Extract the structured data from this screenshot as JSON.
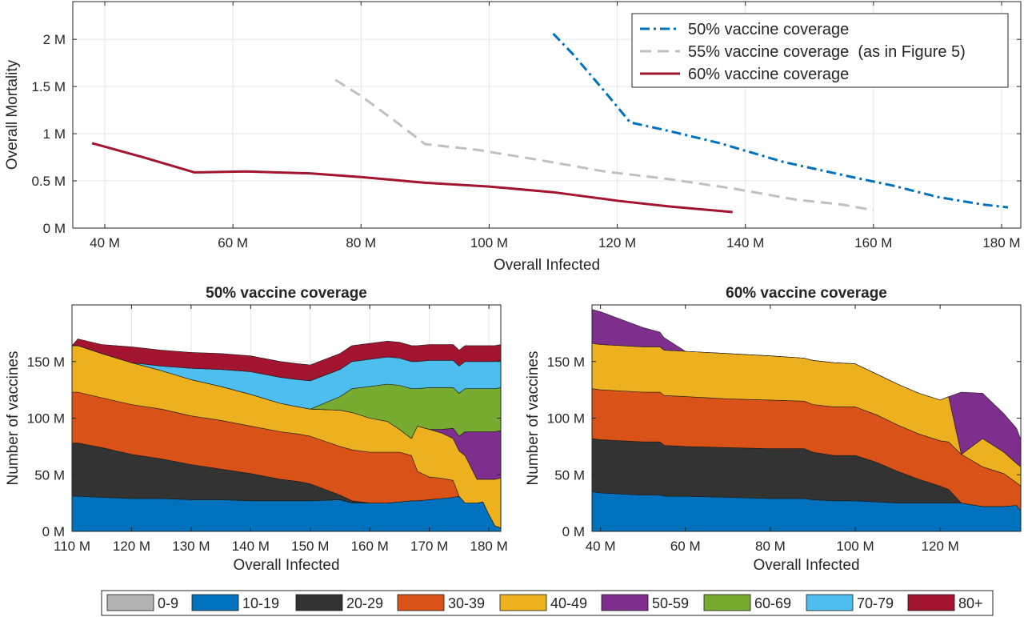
{
  "colors": {
    "axis": "#262626",
    "grid": "#e6e6e6",
    "age": [
      "#b3b3b3",
      "#0072bd",
      "#333333",
      "#d95319",
      "#edb120",
      "#7e2f8e",
      "#77ac30",
      "#4dbeee",
      "#a2142f"
    ]
  },
  "legend_bottom": {
    "labels": [
      "0-9",
      "10-19",
      "20-29",
      "30-39",
      "40-49",
      "50-59",
      "60-69",
      "70-79",
      "80+"
    ]
  },
  "chart_data": [
    {
      "type": "line",
      "title": "",
      "xlabel": "Overall Infected",
      "ylabel": "Overall Mortality",
      "xlim": [
        35,
        183
      ],
      "ylim": [
        0,
        2.4
      ],
      "xticks": [
        40,
        60,
        80,
        100,
        120,
        140,
        160,
        180
      ],
      "xtick_labels": [
        "40 M",
        "60 M",
        "80 M",
        "100 M",
        "120 M",
        "140 M",
        "160 M",
        "180 M"
      ],
      "yticks": [
        0,
        0.5,
        1,
        1.5,
        2
      ],
      "ytick_labels": [
        "0 M",
        "0.5 M",
        "1 M",
        "1.5 M",
        "2 M"
      ],
      "grid": true,
      "legend_position": "top-right",
      "series": [
        {
          "name": "50% vaccine coverage",
          "style": "dashdot",
          "color": "#0072bd",
          "x": [
            110,
            113,
            118,
            122,
            128,
            136,
            146,
            156,
            163,
            170,
            177,
            181
          ],
          "y": [
            2.06,
            1.85,
            1.45,
            1.12,
            1.03,
            0.9,
            0.7,
            0.55,
            0.45,
            0.33,
            0.25,
            0.22
          ]
        },
        {
          "name": "55% vaccine coverage  (as in Figure 5)",
          "style": "dashed",
          "color": "#c0c0c0",
          "x": [
            76,
            80,
            85,
            90,
            98,
            108,
            118,
            128,
            138,
            148,
            155,
            160
          ],
          "y": [
            1.57,
            1.4,
            1.15,
            0.89,
            0.83,
            0.72,
            0.6,
            0.52,
            0.42,
            0.3,
            0.25,
            0.19
          ]
        },
        {
          "name": "60% vaccine coverage",
          "style": "solid",
          "color": "#a2142f",
          "x": [
            38,
            46,
            54,
            62,
            72,
            80,
            90,
            100,
            110,
            120,
            128,
            138
          ],
          "y": [
            0.9,
            0.75,
            0.59,
            0.6,
            0.58,
            0.54,
            0.48,
            0.44,
            0.38,
            0.29,
            0.23,
            0.17
          ]
        }
      ]
    },
    {
      "type": "area",
      "title": "50% vaccine coverage",
      "xlabel": "Overall Infected",
      "ylabel": "Number of vaccines",
      "xlim": [
        110,
        182
      ],
      "ylim": [
        0,
        200
      ],
      "xticks": [
        110,
        120,
        130,
        140,
        150,
        160,
        170,
        180
      ],
      "xtick_labels": [
        "110 M",
        "120 M",
        "130 M",
        "140 M",
        "150 M",
        "160 M",
        "170 M",
        "180 M"
      ],
      "yticks": [
        0,
        50,
        100,
        150
      ],
      "ytick_labels": [
        "0 M",
        "50 M",
        "100 M",
        "150 M"
      ],
      "grid": true,
      "x": [
        110,
        111,
        115,
        120,
        125,
        130,
        135,
        140,
        145,
        148,
        150,
        155,
        157,
        160,
        163,
        165,
        167,
        168,
        170,
        172,
        174,
        175,
        176,
        178,
        179,
        180,
        181,
        182
      ],
      "series": [
        {
          "name": "0-9",
          "values": [
            0,
            0,
            0,
            0,
            0,
            0,
            0,
            0,
            0,
            0,
            0,
            0,
            0,
            0,
            0,
            0,
            0,
            0,
            0,
            0,
            0,
            0,
            0,
            0,
            0,
            0,
            0,
            0
          ]
        },
        {
          "name": "10-19",
          "values": [
            31,
            31,
            30,
            29,
            29,
            28,
            28,
            27,
            27,
            27,
            27,
            28,
            25,
            25,
            25,
            26,
            27,
            27,
            28,
            29,
            30,
            31,
            25,
            25,
            26,
            15,
            5,
            3
          ]
        },
        {
          "name": "20-29",
          "values": [
            47,
            47,
            44,
            39,
            35,
            31,
            27,
            24,
            19,
            17,
            15,
            4,
            2,
            0,
            0,
            0,
            0,
            0,
            0,
            0,
            0,
            0,
            0,
            0,
            0,
            0,
            0,
            0
          ]
        },
        {
          "name": "30-39",
          "values": [
            45,
            45,
            44,
            44,
            44,
            43,
            43,
            42,
            42,
            42,
            42,
            43,
            45,
            45,
            45,
            44,
            40,
            26,
            20,
            18,
            15,
            0,
            0,
            0,
            0,
            0,
            0,
            0
          ]
        },
        {
          "name": "40-49",
          "values": [
            41,
            41,
            39,
            37,
            34,
            32,
            30,
            28,
            25,
            24,
            24,
            32,
            33,
            30,
            27,
            20,
            15,
            40,
            42,
            40,
            37,
            40,
            42,
            21,
            20,
            31,
            41,
            44
          ]
        },
        {
          "name": "50-59",
          "values": [
            0,
            0,
            0,
            0,
            0,
            0,
            0,
            0,
            0,
            0,
            0,
            0,
            0,
            0,
            0,
            0,
            0,
            0,
            0,
            3,
            9,
            13,
            21,
            42,
            42,
            42,
            42,
            42
          ]
        },
        {
          "name": "60-69",
          "values": [
            0,
            0,
            0,
            0,
            0,
            0,
            0,
            0,
            0,
            0,
            0,
            12,
            21,
            28,
            33,
            39,
            44,
            33,
            37,
            37,
            36,
            38,
            38,
            38,
            38,
            38,
            38,
            38
          ]
        },
        {
          "name": "70-79",
          "values": [
            0,
            0,
            0,
            0,
            4,
            10,
            15,
            20,
            23,
            24,
            25,
            24,
            24,
            24,
            24,
            24,
            24,
            24,
            24,
            24,
            24,
            24,
            24,
            24,
            24,
            24,
            24,
            24
          ]
        },
        {
          "name": "80+",
          "values": [
            0,
            6,
            8,
            14,
            14,
            14,
            14,
            14,
            14,
            14,
            14,
            14,
            14,
            14,
            14,
            14,
            14,
            14,
            14,
            14,
            14,
            14,
            14,
            14,
            14,
            14,
            14,
            14
          ]
        }
      ]
    },
    {
      "type": "area",
      "title": "60% vaccine coverage",
      "xlabel": "Overall Infected",
      "ylabel": "Number of vaccines",
      "xlim": [
        38,
        139
      ],
      "ylim": [
        0,
        200
      ],
      "xticks": [
        40,
        60,
        80,
        100,
        120
      ],
      "xtick_labels": [
        "40 M",
        "60 M",
        "80 M",
        "100 M",
        "120 M"
      ],
      "yticks": [
        0,
        50,
        100,
        150
      ],
      "ytick_labels": [
        "0 M",
        "50 M",
        "100 M",
        "150 M"
      ],
      "grid": false,
      "x": [
        38,
        40,
        45,
        50,
        54,
        55,
        60,
        70,
        80,
        88,
        90,
        95,
        100,
        105,
        110,
        115,
        120,
        122,
        125,
        130,
        135,
        138,
        139
      ],
      "series": [
        {
          "name": "0-9",
          "values": [
            0,
            0,
            0,
            0,
            0,
            0,
            0,
            0,
            0,
            0,
            0,
            0,
            0,
            0,
            0,
            0,
            0,
            0,
            0,
            0,
            0,
            0,
            0
          ]
        },
        {
          "name": "10-19",
          "values": [
            35,
            34,
            33,
            32,
            32,
            31,
            31,
            30,
            29,
            29,
            28,
            27,
            27,
            26,
            25,
            25,
            25,
            25,
            25,
            22,
            22,
            23,
            18
          ]
        },
        {
          "name": "20-29",
          "values": [
            47,
            47,
            47,
            47,
            47,
            45,
            44,
            44,
            44,
            44,
            42,
            40,
            40,
            35,
            28,
            21,
            15,
            12,
            0,
            0,
            0,
            0,
            0
          ]
        },
        {
          "name": "30-39",
          "values": [
            44,
            44,
            44,
            44,
            44,
            44,
            44,
            43,
            43,
            42,
            42,
            43,
            43,
            42,
            41,
            40,
            40,
            42,
            43,
            35,
            29,
            20,
            22
          ]
        },
        {
          "name": "40-49",
          "values": [
            40,
            40,
            40,
            40,
            40,
            40,
            40,
            40,
            39,
            38,
            39,
            39,
            38,
            36,
            36,
            36,
            36,
            40,
            0,
            25,
            19,
            17,
            17
          ]
        },
        {
          "name": "50-59",
          "values": [
            30,
            29,
            23,
            17,
            13,
            11,
            0,
            0,
            0,
            0,
            0,
            0,
            0,
            0,
            0,
            0,
            0,
            0,
            55,
            40,
            34,
            31,
            24
          ]
        },
        {
          "name": "60-69",
          "values": [
            0,
            0,
            0,
            0,
            0,
            0,
            0,
            0,
            0,
            0,
            0,
            0,
            0,
            0,
            0,
            0,
            0,
            0,
            0,
            0,
            0,
            0,
            0
          ]
        },
        {
          "name": "70-79",
          "values": [
            0,
            0,
            0,
            0,
            0,
            0,
            0,
            0,
            0,
            0,
            0,
            0,
            0,
            0,
            0,
            0,
            0,
            0,
            0,
            0,
            0,
            0,
            0
          ]
        },
        {
          "name": "80+",
          "values": [
            0,
            0,
            0,
            0,
            0,
            0,
            0,
            0,
            0,
            0,
            0,
            0,
            0,
            0,
            0,
            0,
            0,
            0,
            0,
            0,
            0,
            0,
            0
          ]
        }
      ]
    }
  ]
}
